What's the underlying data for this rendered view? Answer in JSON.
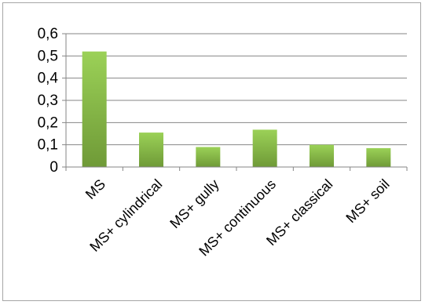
{
  "chart_data": {
    "type": "bar",
    "categories": [
      "MS",
      "MS+ cylindrical",
      "MS+ gully",
      "MS+ continuous",
      "MS+ classical",
      "MS+ soil"
    ],
    "values": [
      0.52,
      0.155,
      0.09,
      0.168,
      0.1,
      0.085
    ],
    "y_ticks": [
      "0",
      "0,1",
      "0,2",
      "0,3",
      "0,4",
      "0,5",
      "0,6"
    ],
    "ylim": [
      0,
      0.6
    ],
    "grid": true,
    "legend": "none",
    "bar_color_light": "#9bd157",
    "bar_color_dark": "#6f9a37",
    "grid_color": "#868686",
    "title": "",
    "xlabel": "",
    "ylabel": ""
  }
}
